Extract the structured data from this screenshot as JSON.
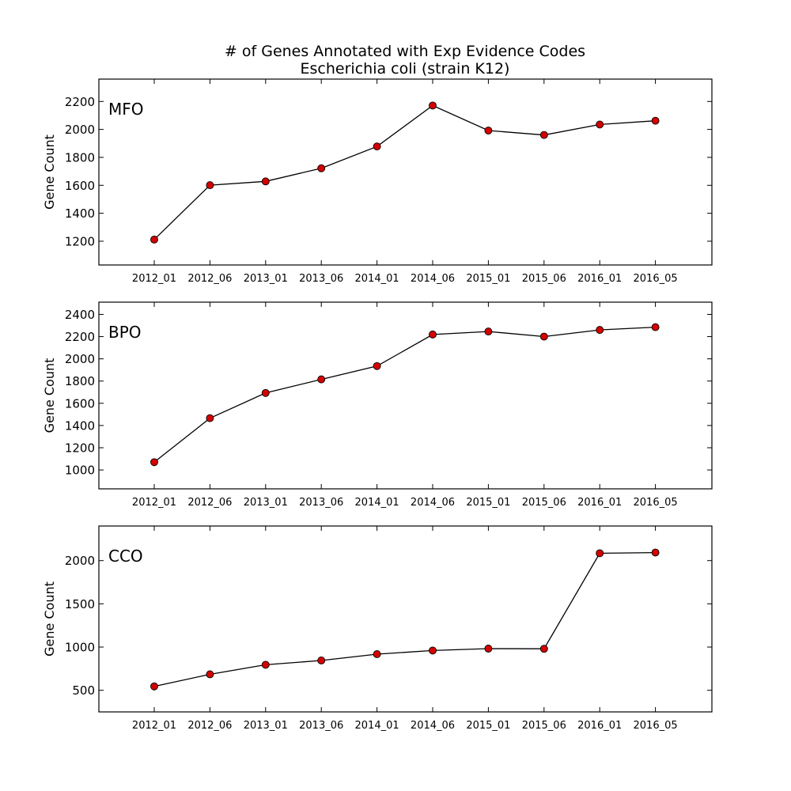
{
  "figure": {
    "title_line1": "# of Genes Annotated with Exp Evidence Codes",
    "title_line2": "Escherichia coli (strain K12)"
  },
  "chart_data": [
    {
      "type": "line",
      "label": "MFO",
      "ylabel": "Gene Count",
      "categories": [
        "2012_01",
        "2012_06",
        "2013_01",
        "2013_06",
        "2014_01",
        "2014_06",
        "2015_01",
        "2015_06",
        "2016_01",
        "2016_05"
      ],
      "values": [
        1212,
        1601,
        1628,
        1722,
        1878,
        2171,
        1992,
        1960,
        2035,
        2062
      ],
      "ylim": [
        1030,
        2360
      ],
      "yticks": [
        1200,
        1400,
        1600,
        1800,
        2000,
        2200
      ],
      "grid": false,
      "line_color": "#000000",
      "marker_color": "#d40000"
    },
    {
      "type": "line",
      "label": "BPO",
      "ylabel": "Gene Count",
      "categories": [
        "2012_01",
        "2012_06",
        "2013_01",
        "2013_06",
        "2014_01",
        "2014_06",
        "2015_01",
        "2015_06",
        "2016_01",
        "2016_05"
      ],
      "values": [
        1070,
        1466,
        1693,
        1815,
        1935,
        2219,
        2246,
        2200,
        2260,
        2285
      ],
      "ylim": [
        830,
        2510
      ],
      "yticks": [
        1000,
        1200,
        1400,
        1600,
        1800,
        2000,
        2200,
        2400
      ],
      "grid": false,
      "line_color": "#000000",
      "marker_color": "#d40000"
    },
    {
      "type": "line",
      "label": "CCO",
      "ylabel": "Gene Count",
      "categories": [
        "2012_01",
        "2012_06",
        "2013_01",
        "2013_06",
        "2014_01",
        "2014_06",
        "2015_01",
        "2015_06",
        "2016_01",
        "2016_05"
      ],
      "values": [
        545,
        685,
        795,
        845,
        918,
        960,
        982,
        980,
        2085,
        2093
      ],
      "ylim": [
        250,
        2400
      ],
      "yticks": [
        500,
        1000,
        1500,
        2000
      ],
      "grid": false,
      "line_color": "#000000",
      "marker_color": "#d40000"
    }
  ]
}
